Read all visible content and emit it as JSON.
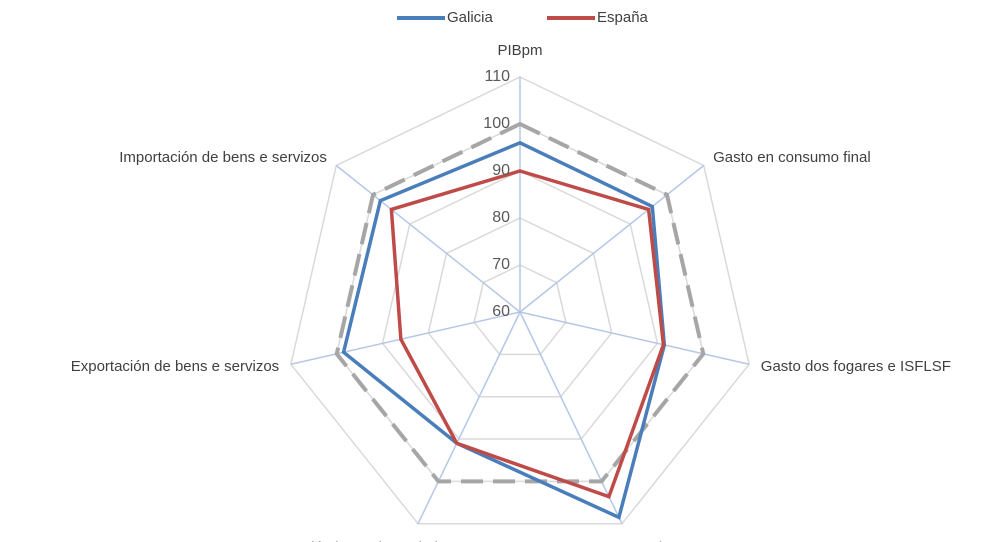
{
  "chart_data": {
    "type": "radar",
    "categories": [
      "PIBpm",
      "Gasto en consumo final",
      "Gasto dos fogares e ISFLSF",
      "Gastos das AA.PP.",
      "Formación bruta de capital",
      "Exportación de bens e servizos",
      "Importación de bens e servizos"
    ],
    "series": [
      {
        "name": "Galicia",
        "color": "#4a7ebb",
        "values": [
          96,
          96,
          91.5,
          108.5,
          91,
          98.5,
          98
        ]
      },
      {
        "name": "España",
        "color": "#be4b48",
        "values": [
          90,
          95,
          91.3,
          103.6,
          91,
          86,
          95
        ]
      }
    ],
    "reference_line": {
      "value": 100,
      "color": "#a6a6a6"
    },
    "ylim": [
      60,
      110
    ],
    "yticks": [
      60,
      70,
      80,
      90,
      100,
      110
    ],
    "grid": true,
    "legend": "top"
  }
}
